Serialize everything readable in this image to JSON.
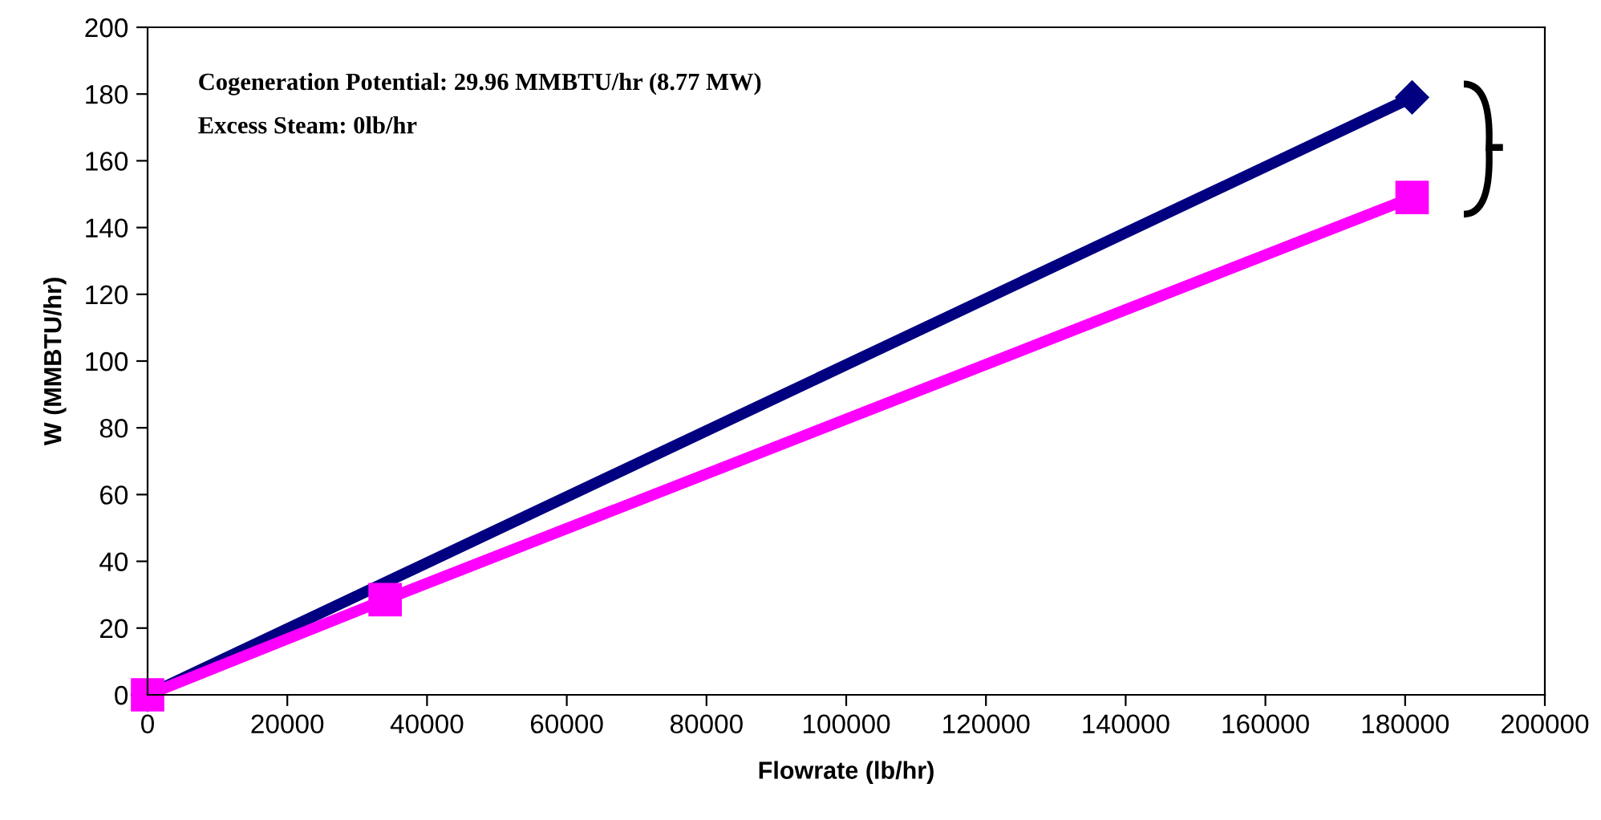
{
  "chart_data": {
    "type": "line",
    "xlabel": "Flowrate (lb/hr)",
    "ylabel": "W (MMBTU/hr)",
    "series": [
      {
        "color": "#000080",
        "marker": "diamond",
        "x": [
          0,
          181000
        ],
        "values": [
          0,
          179
        ]
      },
      {
        "color": "#ff00ff",
        "marker": "square",
        "x": [
          0,
          34000,
          181000
        ],
        "values": [
          0,
          28.5,
          149
        ]
      }
    ],
    "xlim": [
      0,
      200000
    ],
    "xticks": [
      0,
      20000,
      40000,
      60000,
      80000,
      100000,
      120000,
      140000,
      160000,
      180000,
      200000
    ],
    "ylim": [
      0,
      200
    ],
    "yticks": [
      0,
      20,
      40,
      60,
      80,
      100,
      120,
      140,
      160,
      180,
      200
    ],
    "grid": false,
    "legend": false,
    "line_style": "solid",
    "annotations": [
      "Cogeneration Potential: 29.96 MMBTU/hr (8.77 MW)",
      "Excess Steam: 0lb/hr"
    ]
  }
}
